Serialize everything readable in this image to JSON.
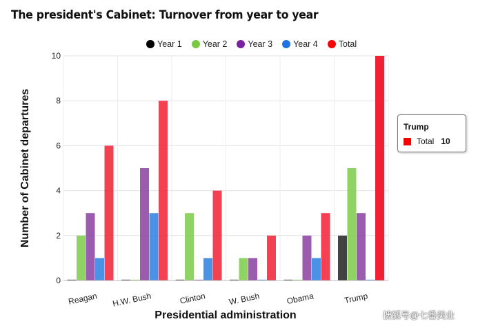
{
  "chart_data": {
    "type": "bar",
    "title": "The president's Cabinet: Turnover from year to year",
    "xlabel": "Presidential administration",
    "ylabel": "Number of Cabinet departures",
    "categories": [
      "Reagan",
      "H.W. Bush",
      "Clinton",
      "W. Bush",
      "Obama",
      "Trump"
    ],
    "series": [
      {
        "name": "Year 1",
        "color": "#222222",
        "values": [
          0,
          0,
          0,
          0,
          0,
          2
        ]
      },
      {
        "name": "Year 2",
        "color": "#7dcb4a",
        "values": [
          2,
          0,
          3,
          1,
          0,
          5
        ]
      },
      {
        "name": "Year 3",
        "color": "#8a3fa0",
        "values": [
          3,
          5,
          0,
          1,
          2,
          3
        ]
      },
      {
        "name": "Year 4",
        "color": "#2a7fe0",
        "values": [
          1,
          3,
          1,
          0,
          1,
          0
        ]
      },
      {
        "name": "Total",
        "color": "#f02035",
        "values": [
          6,
          8,
          4,
          2,
          3,
          10
        ]
      }
    ],
    "ylim": [
      0,
      10
    ],
    "yticks": [
      0,
      2,
      4,
      6,
      8,
      10
    ],
    "grid": true,
    "legend_position": "top"
  },
  "legend_colors": {
    "Year 1": "#000000",
    "Year 2": "#7ac943",
    "Year 3": "#7b1fa2",
    "Year 4": "#1e74e0",
    "Total": "#ff0000"
  },
  "tooltip": {
    "title": "Trump",
    "series": "Total",
    "value": "10",
    "color": "#ff0000"
  },
  "watermark": "搜狐号@七番美业"
}
